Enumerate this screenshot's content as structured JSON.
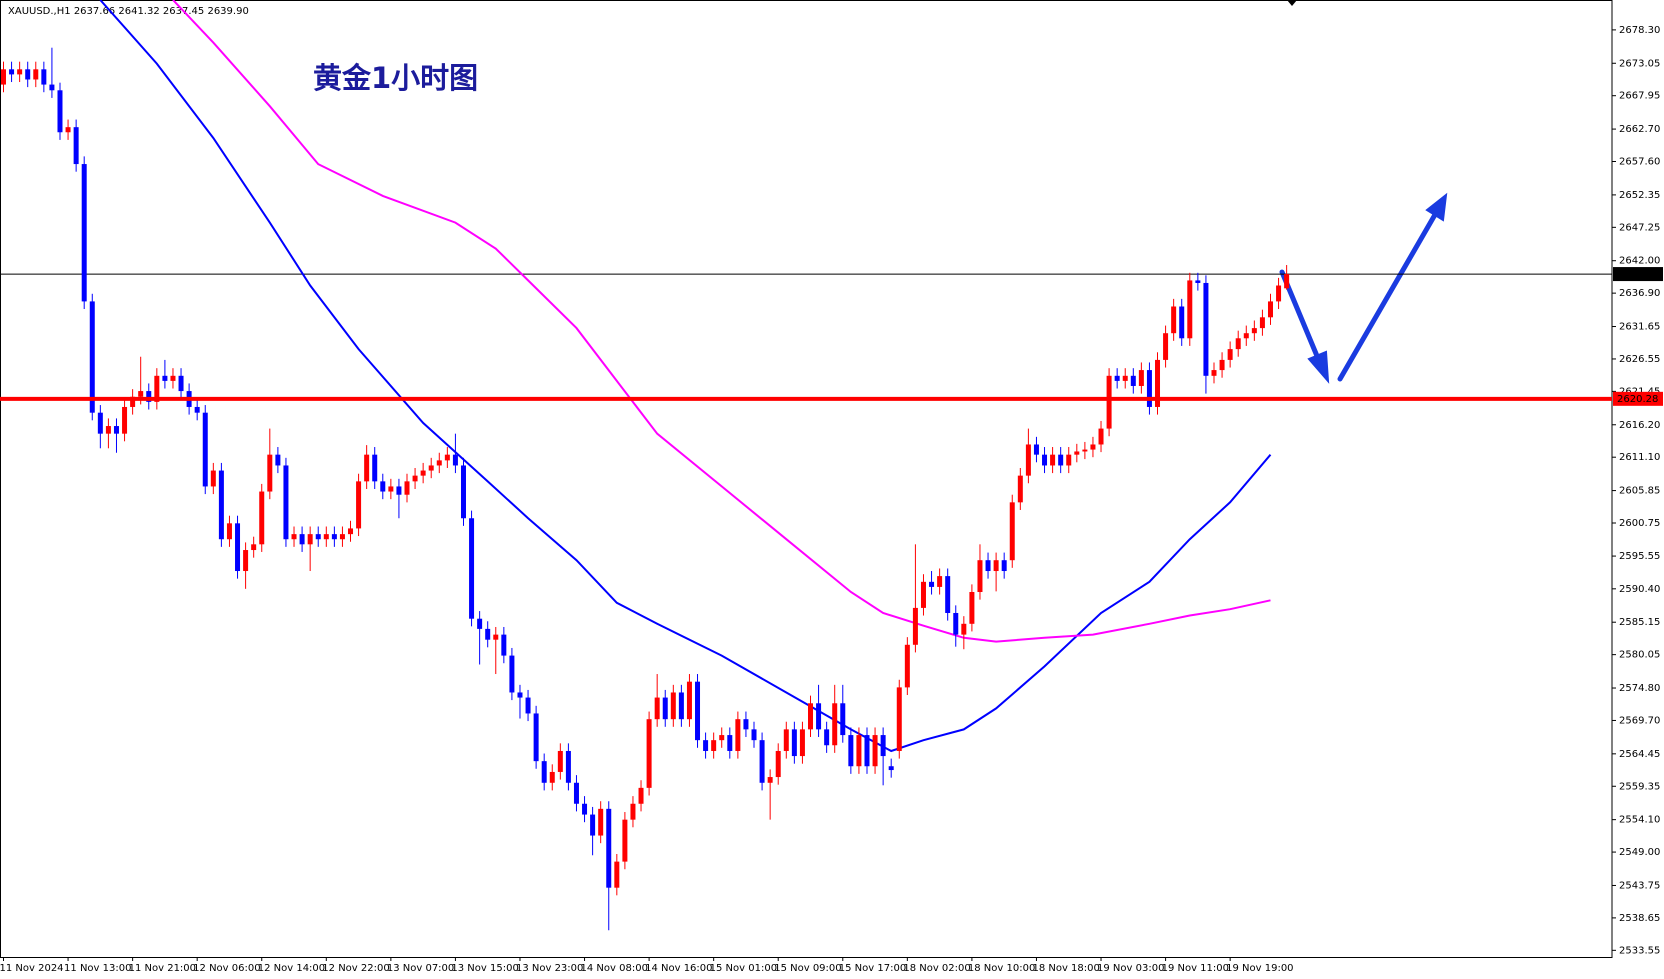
{
  "chart_data": {
    "type": "candlestick",
    "symbol": "XAUUSD.,H1",
    "title": "黄金1小时图",
    "up_color": "#ff0000",
    "down_color": "#0000ff",
    "ylim": [
      2532.5,
      2683.0
    ],
    "yticks": [
      {
        "value": 2678.3,
        "label": "2678.30"
      },
      {
        "value": 2673.05,
        "label": "2673.05"
      },
      {
        "value": 2667.95,
        "label": "2667.95"
      },
      {
        "value": 2662.7,
        "label": "2662.70"
      },
      {
        "value": 2657.6,
        "label": "2657.60"
      },
      {
        "value": 2652.35,
        "label": "2652.35"
      },
      {
        "value": 2647.25,
        "label": "2647.25"
      },
      {
        "value": 2642.0,
        "label": "2642.00"
      },
      {
        "value": 2636.9,
        "label": "2636.90"
      },
      {
        "value": 2631.65,
        "label": "2631.65"
      },
      {
        "value": 2626.55,
        "label": "2626.55"
      },
      {
        "value": 2621.45,
        "label": "2621.45"
      },
      {
        "value": 2616.2,
        "label": "2616.20"
      },
      {
        "value": 2611.1,
        "label": "2611.10"
      },
      {
        "value": 2605.85,
        "label": "2605.85"
      },
      {
        "value": 2600.75,
        "label": "2600.75"
      },
      {
        "value": 2595.55,
        "label": "2595.55"
      },
      {
        "value": 2590.4,
        "label": "2590.40"
      },
      {
        "value": 2585.15,
        "label": "2585.15"
      },
      {
        "value": 2580.05,
        "label": "2580.05"
      },
      {
        "value": 2574.8,
        "label": "2574.80"
      },
      {
        "value": 2569.7,
        "label": "2569.70"
      },
      {
        "value": 2564.45,
        "label": "2564.45"
      },
      {
        "value": 2559.35,
        "label": "2559.35"
      },
      {
        "value": 2554.1,
        "label": "2554.10"
      },
      {
        "value": 2549.0,
        "label": "2549.00"
      },
      {
        "value": 2543.75,
        "label": "2543.75"
      },
      {
        "value": 2538.65,
        "label": "2538.65"
      },
      {
        "value": 2533.55,
        "label": "2533.55"
      }
    ],
    "categories": [
      "11 Nov 2024",
      null,
      null,
      null,
      null,
      null,
      null,
      null,
      "11 Nov 13:00",
      null,
      null,
      null,
      null,
      null,
      null,
      null,
      "11 Nov 21:00",
      null,
      null,
      null,
      null,
      null,
      null,
      null,
      "12 Nov 06:00",
      null,
      null,
      null,
      null,
      null,
      null,
      null,
      "12 Nov 14:00",
      null,
      null,
      null,
      null,
      null,
      null,
      null,
      "12 Nov 22:00",
      null,
      null,
      null,
      null,
      null,
      null,
      null,
      "13 Nov 07:00",
      null,
      null,
      null,
      null,
      null,
      null,
      null,
      "13 Nov 15:00",
      null,
      null,
      null,
      null,
      null,
      null,
      null,
      "13 Nov 23:00",
      null,
      null,
      null,
      null,
      null,
      null,
      null,
      "14 Nov 08:00",
      null,
      null,
      null,
      null,
      null,
      null,
      null,
      "14 Nov 16:00",
      null,
      null,
      null,
      null,
      null,
      null,
      null,
      "15 Nov 01:00",
      null,
      null,
      null,
      null,
      null,
      null,
      null,
      "15 Nov 09:00",
      null,
      null,
      null,
      null,
      null,
      null,
      null,
      "15 Nov 17:00",
      null,
      null,
      null,
      null,
      null,
      null,
      null,
      "18 Nov 02:00",
      null,
      null,
      null,
      null,
      null,
      null,
      null,
      "18 Nov 10:00",
      null,
      null,
      null,
      null,
      null,
      null,
      null,
      "18 Nov 18:00",
      null,
      null,
      null,
      null,
      null,
      null,
      null,
      "19 Nov 03:00",
      null,
      null,
      null,
      null,
      null,
      null,
      null,
      "19 Nov 11:00",
      null,
      null,
      null,
      null,
      null,
      null,
      null,
      "19 Nov 19:00",
      null,
      null,
      null,
      null,
      null,
      null,
      null
    ],
    "open": [
      2669.7,
      2672.1,
      2671.3,
      2672.1,
      2670.5,
      2672.1,
      2669.7,
      2668.8,
      2662.2,
      2663.0,
      2657.2,
      2635.6,
      2618.1,
      2614.8,
      2616.0,
      2614.8,
      2619.0,
      2620.6,
      2621.5,
      2619.8,
      2623.9,
      2623.1,
      2623.9,
      2621.5,
      2619.0,
      2618.1,
      2606.5,
      2609.0,
      2598.2,
      2600.7,
      2593.2,
      2596.5,
      2597.4,
      2605.7,
      2611.5,
      2609.8,
      2598.2,
      2599.0,
      2597.4,
      2599.0,
      2598.2,
      2599.0,
      2598.2,
      2599.0,
      2599.9,
      2607.3,
      2611.5,
      2607.3,
      2605.7,
      2606.5,
      2605.2,
      2607.3,
      2608.2,
      2609.0,
      2609.8,
      2610.6,
      2611.5,
      2609.8,
      2601.5,
      2585.7,
      2584.1,
      2582.4,
      2583.2,
      2579.9,
      2574.1,
      2573.3,
      2570.8,
      2563.3,
      2559.9,
      2561.6,
      2564.9,
      2559.9,
      2556.6,
      2554.9,
      2551.6,
      2555.8,
      2543.4,
      2547.5,
      2554.1,
      2556.6,
      2559.1,
      2569.9,
      2573.3,
      2569.9,
      2574.1,
      2569.9,
      2575.8,
      2566.6,
      2564.9,
      2566.6,
      2567.4,
      2564.9,
      2569.9,
      2568.3,
      2566.6,
      2559.9,
      2560.8,
      2564.9,
      2568.3,
      2564.1,
      2568.3,
      2572.4,
      2568.3,
      2565.8,
      2572.4,
      2567.4,
      2562.5,
      2567.4,
      2562.5,
      2567.4,
      2562.5,
      2564.9,
      2574.9,
      2581.6,
      2587.4,
      2591.5,
      2590.7,
      2592.4,
      2586.6,
      2583.2,
      2584.9,
      2589.9,
      2594.9,
      2593.2,
      2594.9,
      2594.9,
      2604.0,
      2608.2,
      2613.1,
      2611.5,
      2609.8,
      2611.5,
      2609.8,
      2611.5,
      2612.0,
      2612.3,
      2613.1,
      2615.6,
      2623.9,
      2623.1,
      2623.9,
      2622.3,
      2624.8,
      2619.0,
      2626.4,
      2630.6,
      2634.8,
      2629.8,
      2638.9,
      2638.5,
      2623.9,
      2624.8,
      2626.4,
      2628.1,
      2629.8,
      2630.6,
      2631.4,
      2633.1,
      2635.6,
      2637.66
    ],
    "high": [
      2673.3,
      2673.3,
      2673.3,
      2673.3,
      2673.3,
      2673.3,
      2675.5,
      2670.0,
      2664.2,
      2664.2,
      2658.4,
      2636.8,
      2619.3,
      2617.2,
      2617.2,
      2620.2,
      2621.8,
      2626.9,
      2622.7,
      2625.1,
      2626.4,
      2625.1,
      2625.1,
      2622.7,
      2620.2,
      2619.3,
      2610.2,
      2610.2,
      2601.9,
      2601.9,
      2597.7,
      2598.6,
      2606.9,
      2615.6,
      2612.7,
      2611.0,
      2600.2,
      2600.2,
      2600.2,
      2600.2,
      2600.2,
      2600.2,
      2600.2,
      2601.1,
      2608.5,
      2613.0,
      2612.7,
      2608.5,
      2607.7,
      2607.7,
      2608.5,
      2609.4,
      2610.2,
      2611.0,
      2611.8,
      2612.7,
      2614.8,
      2611.0,
      2602.7,
      2586.9,
      2585.3,
      2584.4,
      2584.4,
      2581.1,
      2575.3,
      2574.5,
      2572.0,
      2564.5,
      2562.8,
      2566.1,
      2566.1,
      2561.1,
      2557.8,
      2556.1,
      2557.0,
      2557.0,
      2548.7,
      2555.3,
      2557.8,
      2560.3,
      2571.1,
      2577.0,
      2574.5,
      2575.3,
      2575.3,
      2577.0,
      2577.0,
      2567.8,
      2567.8,
      2568.6,
      2568.6,
      2571.1,
      2571.1,
      2569.5,
      2567.8,
      2562.0,
      2566.1,
      2569.5,
      2569.5,
      2569.5,
      2573.6,
      2575.3,
      2569.5,
      2575.3,
      2575.3,
      2568.6,
      2568.6,
      2568.6,
      2568.6,
      2568.6,
      2563.7,
      2576.1,
      2582.8,
      2597.4,
      2592.7,
      2593.2,
      2593.6,
      2593.6,
      2587.8,
      2586.1,
      2591.1,
      2597.4,
      2596.1,
      2596.1,
      2596.1,
      2605.2,
      2609.4,
      2615.6,
      2614.3,
      2612.7,
      2612.7,
      2612.7,
      2612.7,
      2613.2,
      2613.5,
      2614.3,
      2616.8,
      2625.1,
      2625.1,
      2625.1,
      2625.1,
      2626.0,
      2626.0,
      2627.6,
      2631.8,
      2636.0,
      2636.0,
      2640.1,
      2640.1,
      2639.7,
      2626.0,
      2627.6,
      2629.3,
      2631.0,
      2631.8,
      2632.6,
      2634.3,
      2636.8,
      2639.3,
      2641.32
    ],
    "low": [
      2668.5,
      2670.1,
      2670.1,
      2669.3,
      2669.3,
      2668.5,
      2667.6,
      2661.0,
      2661.0,
      2656.0,
      2634.4,
      2616.9,
      2612.5,
      2612.5,
      2611.8,
      2613.6,
      2617.8,
      2619.4,
      2618.6,
      2618.6,
      2621.9,
      2621.9,
      2620.3,
      2617.8,
      2616.9,
      2605.3,
      2605.3,
      2597.0,
      2597.0,
      2592.0,
      2590.4,
      2595.3,
      2596.2,
      2604.5,
      2608.6,
      2597.0,
      2597.0,
      2596.2,
      2593.2,
      2597.0,
      2597.0,
      2597.0,
      2597.0,
      2597.8,
      2598.7,
      2606.1,
      2606.1,
      2604.5,
      2604.5,
      2601.5,
      2604.0,
      2606.1,
      2607.0,
      2607.8,
      2608.6,
      2609.4,
      2608.6,
      2600.3,
      2584.5,
      2578.5,
      2581.2,
      2577.0,
      2578.7,
      2572.9,
      2570.0,
      2569.6,
      2562.1,
      2558.7,
      2558.7,
      2560.4,
      2558.7,
      2555.4,
      2553.7,
      2548.5,
      2550.4,
      2536.7,
      2542.2,
      2546.3,
      2552.9,
      2555.4,
      2557.9,
      2568.7,
      2568.7,
      2568.7,
      2568.7,
      2568.7,
      2565.4,
      2563.7,
      2563.7,
      2565.4,
      2563.7,
      2563.7,
      2567.1,
      2565.4,
      2558.7,
      2554.1,
      2559.6,
      2563.7,
      2562.9,
      2562.9,
      2567.1,
      2567.1,
      2564.6,
      2564.6,
      2566.2,
      2561.3,
      2561.3,
      2561.3,
      2561.3,
      2559.5,
      2560.7,
      2563.7,
      2573.7,
      2580.4,
      2586.2,
      2589.5,
      2589.5,
      2585.4,
      2581.3,
      2580.9,
      2583.7,
      2588.7,
      2592.0,
      2590.0,
      2592.0,
      2593.7,
      2602.8,
      2607.0,
      2610.3,
      2608.6,
      2608.6,
      2608.6,
      2608.6,
      2610.3,
      2610.8,
      2611.1,
      2611.9,
      2614.4,
      2621.9,
      2621.9,
      2621.1,
      2621.1,
      2617.8,
      2617.8,
      2625.2,
      2629.4,
      2628.6,
      2628.6,
      2637.3,
      2621.1,
      2622.7,
      2623.6,
      2625.2,
      2626.9,
      2628.6,
      2629.4,
      2630.2,
      2631.9,
      2634.4,
      2637.45
    ],
    "close": [
      2672.1,
      2671.3,
      2672.1,
      2670.5,
      2672.1,
      2669.7,
      2668.8,
      2662.2,
      2663.0,
      2657.2,
      2635.6,
      2618.1,
      2614.8,
      2616.0,
      2614.8,
      2619.0,
      2620.6,
      2621.5,
      2619.8,
      2623.9,
      2623.1,
      2623.9,
      2621.5,
      2619.0,
      2618.1,
      2606.5,
      2609.0,
      2598.2,
      2600.7,
      2593.2,
      2596.5,
      2597.4,
      2605.7,
      2611.5,
      2609.8,
      2598.2,
      2599.0,
      2597.4,
      2599.0,
      2598.2,
      2599.0,
      2598.2,
      2599.0,
      2599.9,
      2607.3,
      2611.5,
      2607.3,
      2605.7,
      2606.5,
      2605.2,
      2607.3,
      2608.2,
      2609.0,
      2609.8,
      2610.6,
      2611.5,
      2609.8,
      2601.5,
      2585.7,
      2584.1,
      2582.4,
      2583.2,
      2579.9,
      2574.1,
      2573.3,
      2570.8,
      2563.3,
      2559.9,
      2561.6,
      2564.9,
      2559.9,
      2556.6,
      2554.9,
      2551.6,
      2555.8,
      2543.4,
      2547.5,
      2554.1,
      2556.6,
      2559.1,
      2569.9,
      2573.3,
      2569.9,
      2574.1,
      2569.9,
      2575.8,
      2566.6,
      2564.9,
      2566.6,
      2567.4,
      2564.9,
      2569.9,
      2568.3,
      2566.6,
      2559.9,
      2560.8,
      2564.9,
      2568.3,
      2564.1,
      2568.3,
      2572.4,
      2568.3,
      2565.8,
      2572.4,
      2567.4,
      2562.5,
      2567.4,
      2562.5,
      2567.4,
      2564.1,
      2561.9,
      2574.9,
      2581.6,
      2587.4,
      2591.5,
      2590.7,
      2592.4,
      2586.6,
      2583.2,
      2584.9,
      2589.9,
      2594.9,
      2593.2,
      2594.9,
      2593.2,
      2604.0,
      2608.2,
      2613.1,
      2611.5,
      2609.8,
      2611.5,
      2609.8,
      2611.5,
      2612.0,
      2612.3,
      2613.1,
      2615.6,
      2623.9,
      2623.1,
      2623.9,
      2622.3,
      2624.8,
      2619.0,
      2626.4,
      2630.6,
      2634.8,
      2629.8,
      2638.9,
      2638.5,
      2623.9,
      2624.8,
      2626.4,
      2628.1,
      2629.8,
      2630.6,
      2631.4,
      2633.1,
      2635.6,
      2638.1,
      2639.9
    ],
    "last_price": {
      "value": 2639.9,
      "label": "2639.90",
      "color": "#000000"
    },
    "levels": [
      {
        "value": 2620.28,
        "color": "#ff0000"
      }
    ],
    "moving_averages": [
      {
        "color": "#0000ff",
        "x": [
          12,
          19,
          26,
          33,
          38,
          44,
          52,
          60,
          65,
          71,
          76,
          81,
          89,
          97,
          105,
          110,
          114,
          119,
          123,
          129,
          136,
          142,
          147,
          152,
          157
        ],
        "values": [
          2683.0,
          2673.0,
          2661.3,
          2648.0,
          2638.1,
          2628.1,
          2616.5,
          2607.3,
          2601.5,
          2594.9,
          2588.2,
          2584.9,
          2579.9,
          2574.1,
          2568.3,
          2564.9,
          2566.6,
          2568.3,
          2571.6,
          2578.2,
          2586.6,
          2591.5,
          2598.2,
          2604.0,
          2611.5
        ]
      },
      {
        "color": "#ff00ff",
        "x": [
          21,
          26,
          33,
          39,
          47,
          56,
          61,
          65,
          71,
          76,
          81,
          89,
          97,
          105,
          109,
          114,
          119,
          123,
          129,
          135,
          142,
          147,
          152,
          157
        ],
        "values": [
          2683.0,
          2676.3,
          2666.3,
          2657.2,
          2652.2,
          2648.0,
          2643.9,
          2638.9,
          2631.4,
          2623.1,
          2614.8,
          2606.5,
          2598.2,
          2589.9,
          2586.6,
          2584.6,
          2582.7,
          2582.1,
          2582.7,
          2583.2,
          2584.9,
          2586.2,
          2587.2,
          2588.6
        ]
      }
    ]
  }
}
